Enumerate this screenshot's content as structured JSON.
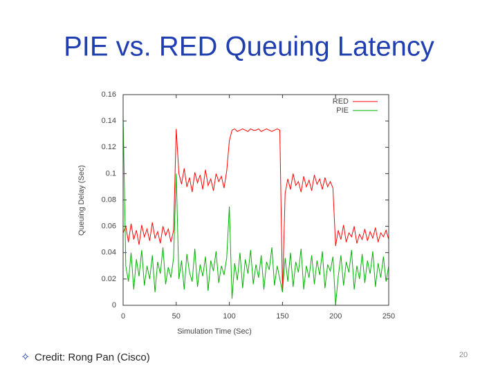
{
  "slide": {
    "title": "PIE vs. RED Queuing Latency",
    "bullet": "Credit: Rong Pan (Cisco)",
    "page_number": "20"
  },
  "chart_data": {
    "type": "line",
    "xlabel": "Simulation Time (Sec)",
    "ylabel": "Queuing Delay (Sec)",
    "xlim": [
      0,
      250
    ],
    "xticks": [
      0,
      50,
      100,
      150,
      200,
      250
    ],
    "ylim": [
      0,
      0.16
    ],
    "yticks": [
      0,
      0.02,
      0.04,
      0.06,
      0.08,
      0.1,
      0.12,
      0.14,
      0.16
    ],
    "grid": false,
    "legend": "upper right",
    "x": [
      0,
      2.5,
      5,
      7.5,
      10,
      12.5,
      15,
      17.5,
      20,
      22.5,
      25,
      27.5,
      30,
      32.5,
      35,
      37.5,
      40,
      42.5,
      45,
      47.5,
      50,
      52.5,
      55,
      57.5,
      60,
      62.5,
      65,
      67.5,
      70,
      72.5,
      75,
      77.5,
      80,
      82.5,
      85,
      87.5,
      90,
      92.5,
      95,
      97.5,
      100,
      102.5,
      105,
      107.5,
      110,
      112.5,
      115,
      117.5,
      120,
      122.5,
      125,
      127.5,
      130,
      132.5,
      135,
      137.5,
      140,
      142.5,
      145,
      147.5,
      150,
      152.5,
      155,
      157.5,
      160,
      162.5,
      165,
      167.5,
      170,
      172.5,
      175,
      177.5,
      180,
      182.5,
      185,
      187.5,
      190,
      192.5,
      195,
      197.5,
      200,
      202.5,
      205,
      207.5,
      210,
      212.5,
      215,
      217.5,
      220,
      222.5,
      225,
      227.5,
      230,
      232.5,
      235,
      237.5,
      240,
      242.5,
      245,
      247.5,
      250
    ],
    "series": [
      {
        "name": "RED",
        "color": "#ff0000",
        "values": [
          0.055,
          0.06,
          0.048,
          0.062,
          0.05,
          0.057,
          0.046,
          0.061,
          0.052,
          0.058,
          0.049,
          0.063,
          0.051,
          0.056,
          0.047,
          0.06,
          0.053,
          0.058,
          0.048,
          0.057,
          0.134,
          0.1,
          0.092,
          0.104,
          0.09,
          0.097,
          0.086,
          0.101,
          0.093,
          0.099,
          0.088,
          0.103,
          0.091,
          0.096,
          0.087,
          0.1,
          0.094,
          0.098,
          0.089,
          0.102,
          0.125,
          0.133,
          0.134,
          0.132,
          0.133,
          0.134,
          0.133,
          0.132,
          0.134,
          0.133,
          0.133,
          0.134,
          0.132,
          0.133,
          0.134,
          0.133,
          0.132,
          0.133,
          0.134,
          0.133,
          0.01,
          0.085,
          0.096,
          0.088,
          0.1,
          0.091,
          0.094,
          0.086,
          0.098,
          0.09,
          0.095,
          0.087,
          0.099,
          0.092,
          0.096,
          0.088,
          0.097,
          0.09,
          0.094,
          0.089,
          0.045,
          0.057,
          0.05,
          0.061,
          0.048,
          0.055,
          0.052,
          0.06,
          0.047,
          0.054,
          0.05,
          0.058,
          0.049,
          0.056,
          0.051,
          0.059,
          0.048,
          0.055,
          0.052,
          0.057,
          0.05
        ]
      },
      {
        "name": "PIE",
        "color": "#00b000",
        "values": [
          0.145,
          0.03,
          0.018,
          0.04,
          0.012,
          0.035,
          0.022,
          0.042,
          0.015,
          0.03,
          0.02,
          0.038,
          0.01,
          0.033,
          0.024,
          0.044,
          0.016,
          0.029,
          0.021,
          0.036,
          0.1,
          0.02,
          0.034,
          0.012,
          0.039,
          0.025,
          0.018,
          0.043,
          0.014,
          0.031,
          0.022,
          0.037,
          0.011,
          0.034,
          0.026,
          0.041,
          0.017,
          0.03,
          0.023,
          0.036,
          0.075,
          0.005,
          0.032,
          0.019,
          0.04,
          0.013,
          0.035,
          0.024,
          0.042,
          0.016,
          0.031,
          0.021,
          0.038,
          0.012,
          0.033,
          0.027,
          0.044,
          0.015,
          0.03,
          0.02,
          0.01,
          0.036,
          0.018,
          0.04,
          0.014,
          0.033,
          0.025,
          0.043,
          0.012,
          0.03,
          0.021,
          0.038,
          0.016,
          0.034,
          0.023,
          0.041,
          0.013,
          0.031,
          0.026,
          0.037,
          0,
          0.022,
          0.038,
          0.015,
          0.033,
          0.025,
          0.042,
          0.012,
          0.03,
          0.02,
          0.039,
          0.017,
          0.034,
          0.024,
          0.041,
          0.014,
          0.032,
          0.021,
          0.037,
          0.018,
          0.03
        ]
      }
    ]
  }
}
